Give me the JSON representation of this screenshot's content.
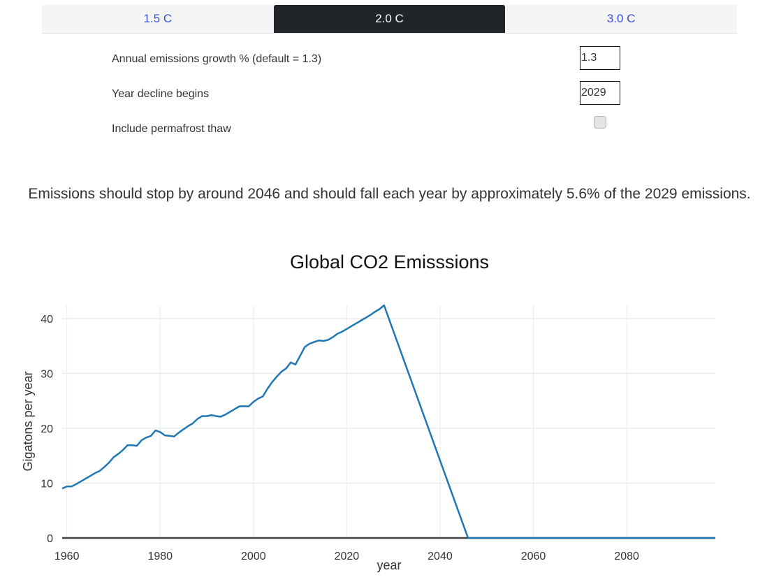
{
  "tabs": [
    {
      "label": "1.5 C",
      "active": false
    },
    {
      "label": "2.0 C",
      "active": true
    },
    {
      "label": "3.0 C",
      "active": false
    }
  ],
  "form": {
    "growth_label": "Annual emissions growth % (default = 1.3)",
    "growth_value": "1.3",
    "decline_label": "Year decline begins",
    "decline_value": "2029",
    "permafrost_label": "Include permafrost thaw",
    "permafrost_checked": false
  },
  "summary": "Emissions should stop by around 2046 and should fall each year by approximately 5.6% of the 2029 emissions.",
  "colors": {
    "line": "#1f77b4",
    "active_tab": "#212529",
    "tab_text": "#3b50d8"
  },
  "chart_data": {
    "type": "line",
    "title": "Global CO2 Emisssions",
    "xlabel": "year",
    "ylabel": "Gigatons per year",
    "xlim": [
      1959,
      2099
    ],
    "ylim": [
      0,
      42.4
    ],
    "grid": true,
    "x_ticks": [
      1960,
      1980,
      2000,
      2020,
      2040,
      2060,
      2080
    ],
    "y_ticks": [
      0,
      10,
      20,
      30,
      40
    ],
    "series": [
      {
        "name": "Global CO2 Emissions",
        "x": [
          1959,
          1960,
          1961,
          1962,
          1963,
          1964,
          1965,
          1966,
          1967,
          1968,
          1969,
          1970,
          1971,
          1972,
          1973,
          1974,
          1975,
          1976,
          1977,
          1978,
          1979,
          1980,
          1981,
          1982,
          1983,
          1984,
          1985,
          1986,
          1987,
          1988,
          1989,
          1990,
          1991,
          1992,
          1993,
          1994,
          1995,
          1996,
          1997,
          1998,
          1999,
          2000,
          2001,
          2002,
          2003,
          2004,
          2005,
          2006,
          2007,
          2008,
          2009,
          2010,
          2011,
          2012,
          2013,
          2014,
          2015,
          2016,
          2017,
          2018,
          2019,
          2020,
          2021,
          2022,
          2023,
          2024,
          2025,
          2026,
          2027,
          2028,
          2046,
          2099
        ],
        "values": [
          9.0,
          9.4,
          9.4,
          9.8,
          10.3,
          10.8,
          11.3,
          11.8,
          12.2,
          12.9,
          13.7,
          14.7,
          15.3,
          16.0,
          16.9,
          16.9,
          16.8,
          17.8,
          18.3,
          18.6,
          19.6,
          19.3,
          18.7,
          18.6,
          18.5,
          19.2,
          19.8,
          20.4,
          20.9,
          21.7,
          22.2,
          22.2,
          22.4,
          22.2,
          22.1,
          22.5,
          23.0,
          23.5,
          24.0,
          24.0,
          24.0,
          24.8,
          25.4,
          25.8,
          27.2,
          28.4,
          29.4,
          30.3,
          30.9,
          32.0,
          31.6,
          33.2,
          34.8,
          35.4,
          35.7,
          36.0,
          35.9,
          36.1,
          36.6,
          37.2,
          37.6,
          38.1,
          38.6,
          39.1,
          39.6,
          40.1,
          40.6,
          41.2,
          41.7,
          42.4,
          0,
          0
        ]
      }
    ]
  }
}
